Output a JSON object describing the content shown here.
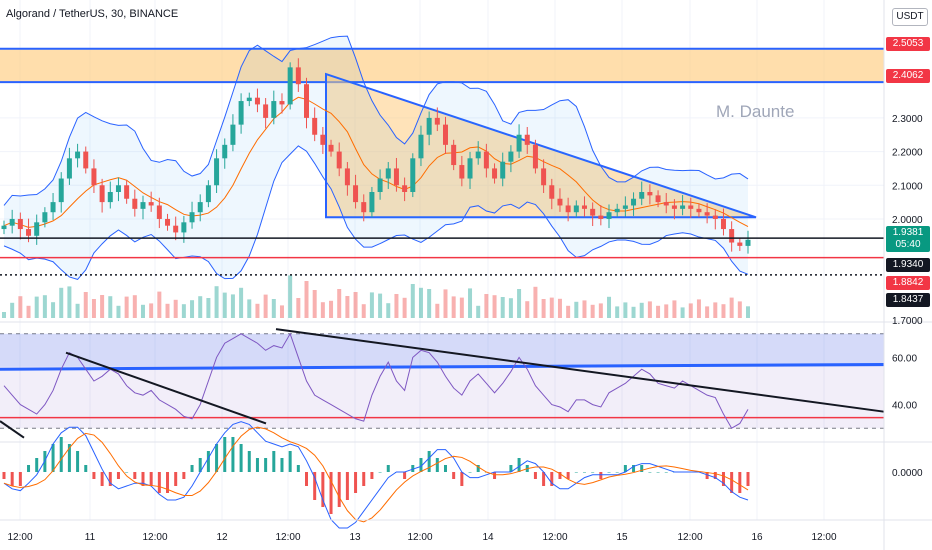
{
  "header": {
    "symbol_title": "Algorand / TetherUS, 30, BINANCE",
    "currency_button": "USDT",
    "watermark": "M. Daunte"
  },
  "colors": {
    "up": "#26a69a",
    "down": "#ef5350",
    "zone_fill": "#ffcc80",
    "zone_line": "#2962ff",
    "bollinger": "#2962ff",
    "ma": "#ff6d00",
    "rsi": "#7e57c2",
    "support_red": "#f23645"
  },
  "chart_data": [
    {
      "type": "candlestick",
      "title": "Algorand / TetherUS, 30, BINANCE",
      "ylim": [
        1.7,
        2.65
      ],
      "y_ticks": [
        "2.3000",
        "2.2000",
        "2.1000",
        "2.0000",
        "1.7000"
      ],
      "x_ticks": [
        "12:00",
        "11",
        "12:00",
        "12",
        "12:00",
        "13",
        "12:00",
        "14",
        "12:00",
        "15",
        "12:00",
        "16",
        "12:00"
      ],
      "price_labels": [
        {
          "value": "2.5053",
          "style": "red"
        },
        {
          "value": "2.4062",
          "style": "red"
        },
        {
          "value": "1.9381",
          "sub": "05:40",
          "style": "teal"
        },
        {
          "value": "1.9340",
          "style": "black"
        },
        {
          "value": "1.8842",
          "style": "red"
        },
        {
          "value": "1.8437",
          "style": "black"
        }
      ],
      "resistance_zone": [
        2.4062,
        2.5053
      ],
      "triangle": {
        "top_start": 2.43,
        "bottom": 2.005,
        "apex": 2.005
      },
      "horizontal_levels": [
        {
          "value": 1.943,
          "style": "solid-black"
        },
        {
          "value": 1.885,
          "style": "solid-red"
        },
        {
          "value": 1.834,
          "style": "dotted-black"
        }
      ],
      "close_series": [
        1.98,
        2.0,
        1.97,
        1.95,
        1.99,
        2.02,
        2.05,
        2.12,
        2.18,
        2.2,
        2.15,
        2.1,
        2.05,
        2.08,
        2.1,
        2.06,
        2.03,
        2.05,
        2.04,
        2.0,
        1.98,
        1.96,
        1.99,
        2.02,
        2.05,
        2.1,
        2.18,
        2.22,
        2.28,
        2.35,
        2.36,
        2.34,
        2.3,
        2.35,
        2.34,
        2.45,
        2.4,
        2.3,
        2.25,
        2.22,
        2.2,
        2.15,
        2.1,
        2.05,
        2.02,
        2.08,
        2.12,
        2.15,
        2.1,
        2.08,
        2.18,
        2.25,
        2.3,
        2.28,
        2.22,
        2.16,
        2.12,
        2.18,
        2.2,
        2.15,
        2.12,
        2.17,
        2.2,
        2.25,
        2.22,
        2.15,
        2.1,
        2.06,
        2.04,
        2.02,
        2.04,
        2.03,
        2.01,
        2.0,
        2.02,
        2.03,
        2.04,
        2.06,
        2.08,
        2.07,
        2.05,
        2.04,
        2.03,
        2.04,
        2.03,
        2.02,
        2.01,
        2.0,
        1.97,
        1.93,
        1.92,
        1.938
      ]
    },
    {
      "type": "line",
      "title": "",
      "ylim": [
        25,
        75
      ],
      "y_ticks": [
        "60.00",
        "40.00"
      ],
      "bands": [
        70,
        30
      ],
      "series": [
        {
          "values": [
            48,
            44,
            40,
            38,
            36,
            40,
            46,
            55,
            62,
            60,
            55,
            50,
            52,
            55,
            53,
            48,
            45,
            44,
            46,
            42,
            40,
            38,
            35,
            34,
            40,
            50,
            60,
            66,
            68,
            70,
            68,
            66,
            63,
            65,
            64,
            70,
            60,
            50,
            44,
            42,
            40,
            38,
            36,
            34,
            33,
            44,
            52,
            58,
            50,
            46,
            60,
            63,
            62,
            58,
            52,
            47,
            44,
            50,
            53,
            49,
            45,
            49,
            54,
            60,
            55,
            48,
            44,
            40,
            39,
            37,
            42,
            42,
            40,
            39,
            45,
            47,
            49,
            52,
            55,
            53,
            49,
            48,
            47,
            50,
            48,
            46,
            44,
            43,
            36,
            30,
            32,
            38
          ]
        }
      ]
    },
    {
      "type": "bar",
      "title": "",
      "y_ticks": [
        "0.0000"
      ],
      "values": [
        -0.01,
        -0.02,
        -0.02,
        0.01,
        0.02,
        0.03,
        0.04,
        0.05,
        0.04,
        0.03,
        0.01,
        -0.01,
        -0.02,
        -0.02,
        -0.01,
        0.0,
        -0.01,
        -0.02,
        -0.02,
        -0.03,
        -0.03,
        -0.02,
        -0.01,
        0.01,
        0.02,
        0.03,
        0.04,
        0.05,
        0.05,
        0.04,
        0.03,
        0.02,
        0.02,
        0.03,
        0.02,
        0.03,
        0.01,
        -0.02,
        -0.04,
        -0.05,
        -0.06,
        -0.05,
        -0.04,
        -0.03,
        -0.02,
        -0.01,
        0.0,
        0.01,
        0.0,
        -0.01,
        0.01,
        0.02,
        0.03,
        0.02,
        0.01,
        -0.01,
        -0.02,
        0.0,
        0.01,
        0.0,
        -0.01,
        0.0,
        0.01,
        0.02,
        0.01,
        -0.01,
        -0.02,
        -0.02,
        -0.01,
        -0.01,
        0.0,
        0.0,
        0.0,
        -0.01,
        0.0,
        0.0,
        0.01,
        0.01,
        0.01,
        0.0,
        0.0,
        0.0,
        0.0,
        0.0,
        0.0,
        0.0,
        -0.01,
        -0.01,
        -0.02,
        -0.03,
        -0.03,
        -0.02
      ]
    }
  ]
}
